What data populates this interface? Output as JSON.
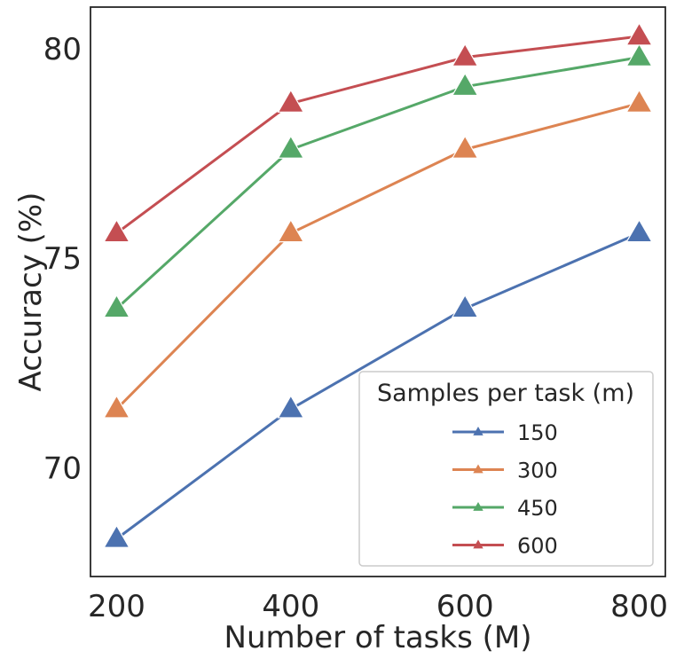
{
  "chart_data": {
    "type": "line",
    "xlabel": "Number of tasks (M)",
    "ylabel": "Accuracy (%)",
    "x": [
      200,
      400,
      600,
      800
    ],
    "xticks": [
      "200",
      "400",
      "600",
      "800"
    ],
    "yticks": [
      "70",
      "75",
      "80"
    ],
    "xlim": [
      170,
      830
    ],
    "ylim": [
      67.4,
      81.0
    ],
    "grid": false,
    "marker": "triangle-up",
    "legend": {
      "title": "Samples per task (m)",
      "position": "lower-right"
    },
    "series": [
      {
        "name": "150",
        "color": "#4C72B0",
        "values": [
          68.3,
          71.4,
          73.8,
          75.6
        ]
      },
      {
        "name": "300",
        "color": "#DD8452",
        "values": [
          71.4,
          75.6,
          77.6,
          78.7
        ]
      },
      {
        "name": "450",
        "color": "#55A868",
        "values": [
          73.8,
          77.6,
          79.1,
          79.8
        ]
      },
      {
        "name": "600",
        "color": "#C44E52",
        "values": [
          75.6,
          78.7,
          79.8,
          80.3
        ]
      }
    ]
  }
}
